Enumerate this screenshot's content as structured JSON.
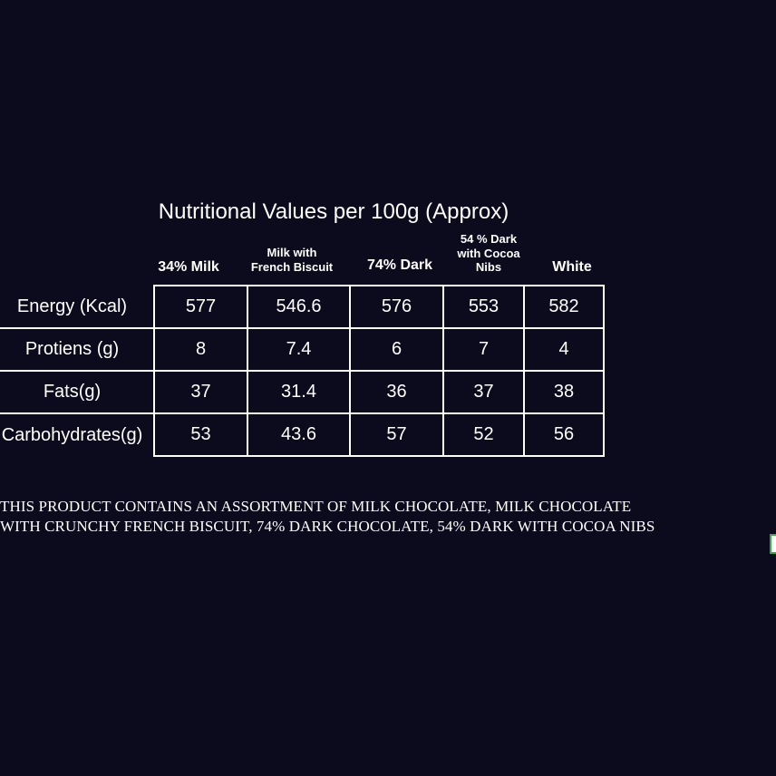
{
  "title": "Nutritional Values per 100g (Approx)",
  "columns": [
    {
      "label_lines": [
        "34% Milk"
      ],
      "size": "big"
    },
    {
      "label_lines": [
        "Milk with",
        "French Biscuit"
      ],
      "size": "small"
    },
    {
      "label_lines": [
        "74% Dark"
      ],
      "size": "big"
    },
    {
      "label_lines": [
        "54 % Dark",
        "with Cocoa",
        "Nibs"
      ],
      "size": "small"
    },
    {
      "label_lines": [
        "White"
      ],
      "size": "big"
    }
  ],
  "rows": [
    {
      "label": "Energy (Kcal)",
      "values": [
        "577",
        "546.6",
        "576",
        "553",
        "582"
      ]
    },
    {
      "label": "Protiens (g)",
      "values": [
        "8",
        "7.4",
        "6",
        "7",
        "4"
      ]
    },
    {
      "label": "Fats(g)",
      "values": [
        "37",
        "31.4",
        "36",
        "37",
        "38"
      ]
    },
    {
      "label": "Carbohydrates(g)",
      "values": [
        "53",
        "43.6",
        "57",
        "52",
        "56"
      ]
    }
  ],
  "note": {
    "line1": "THIS PRODUCT CONTAINS AN ASSORTMENT OF MILK CHOCOLATE, MILK CHOCOLATE",
    "line2": "WITH CRUNCHY FRENCH BISCUIT, 74% DARK CHOCOLATE, 54% DARK WITH COCOA NIBS"
  }
}
